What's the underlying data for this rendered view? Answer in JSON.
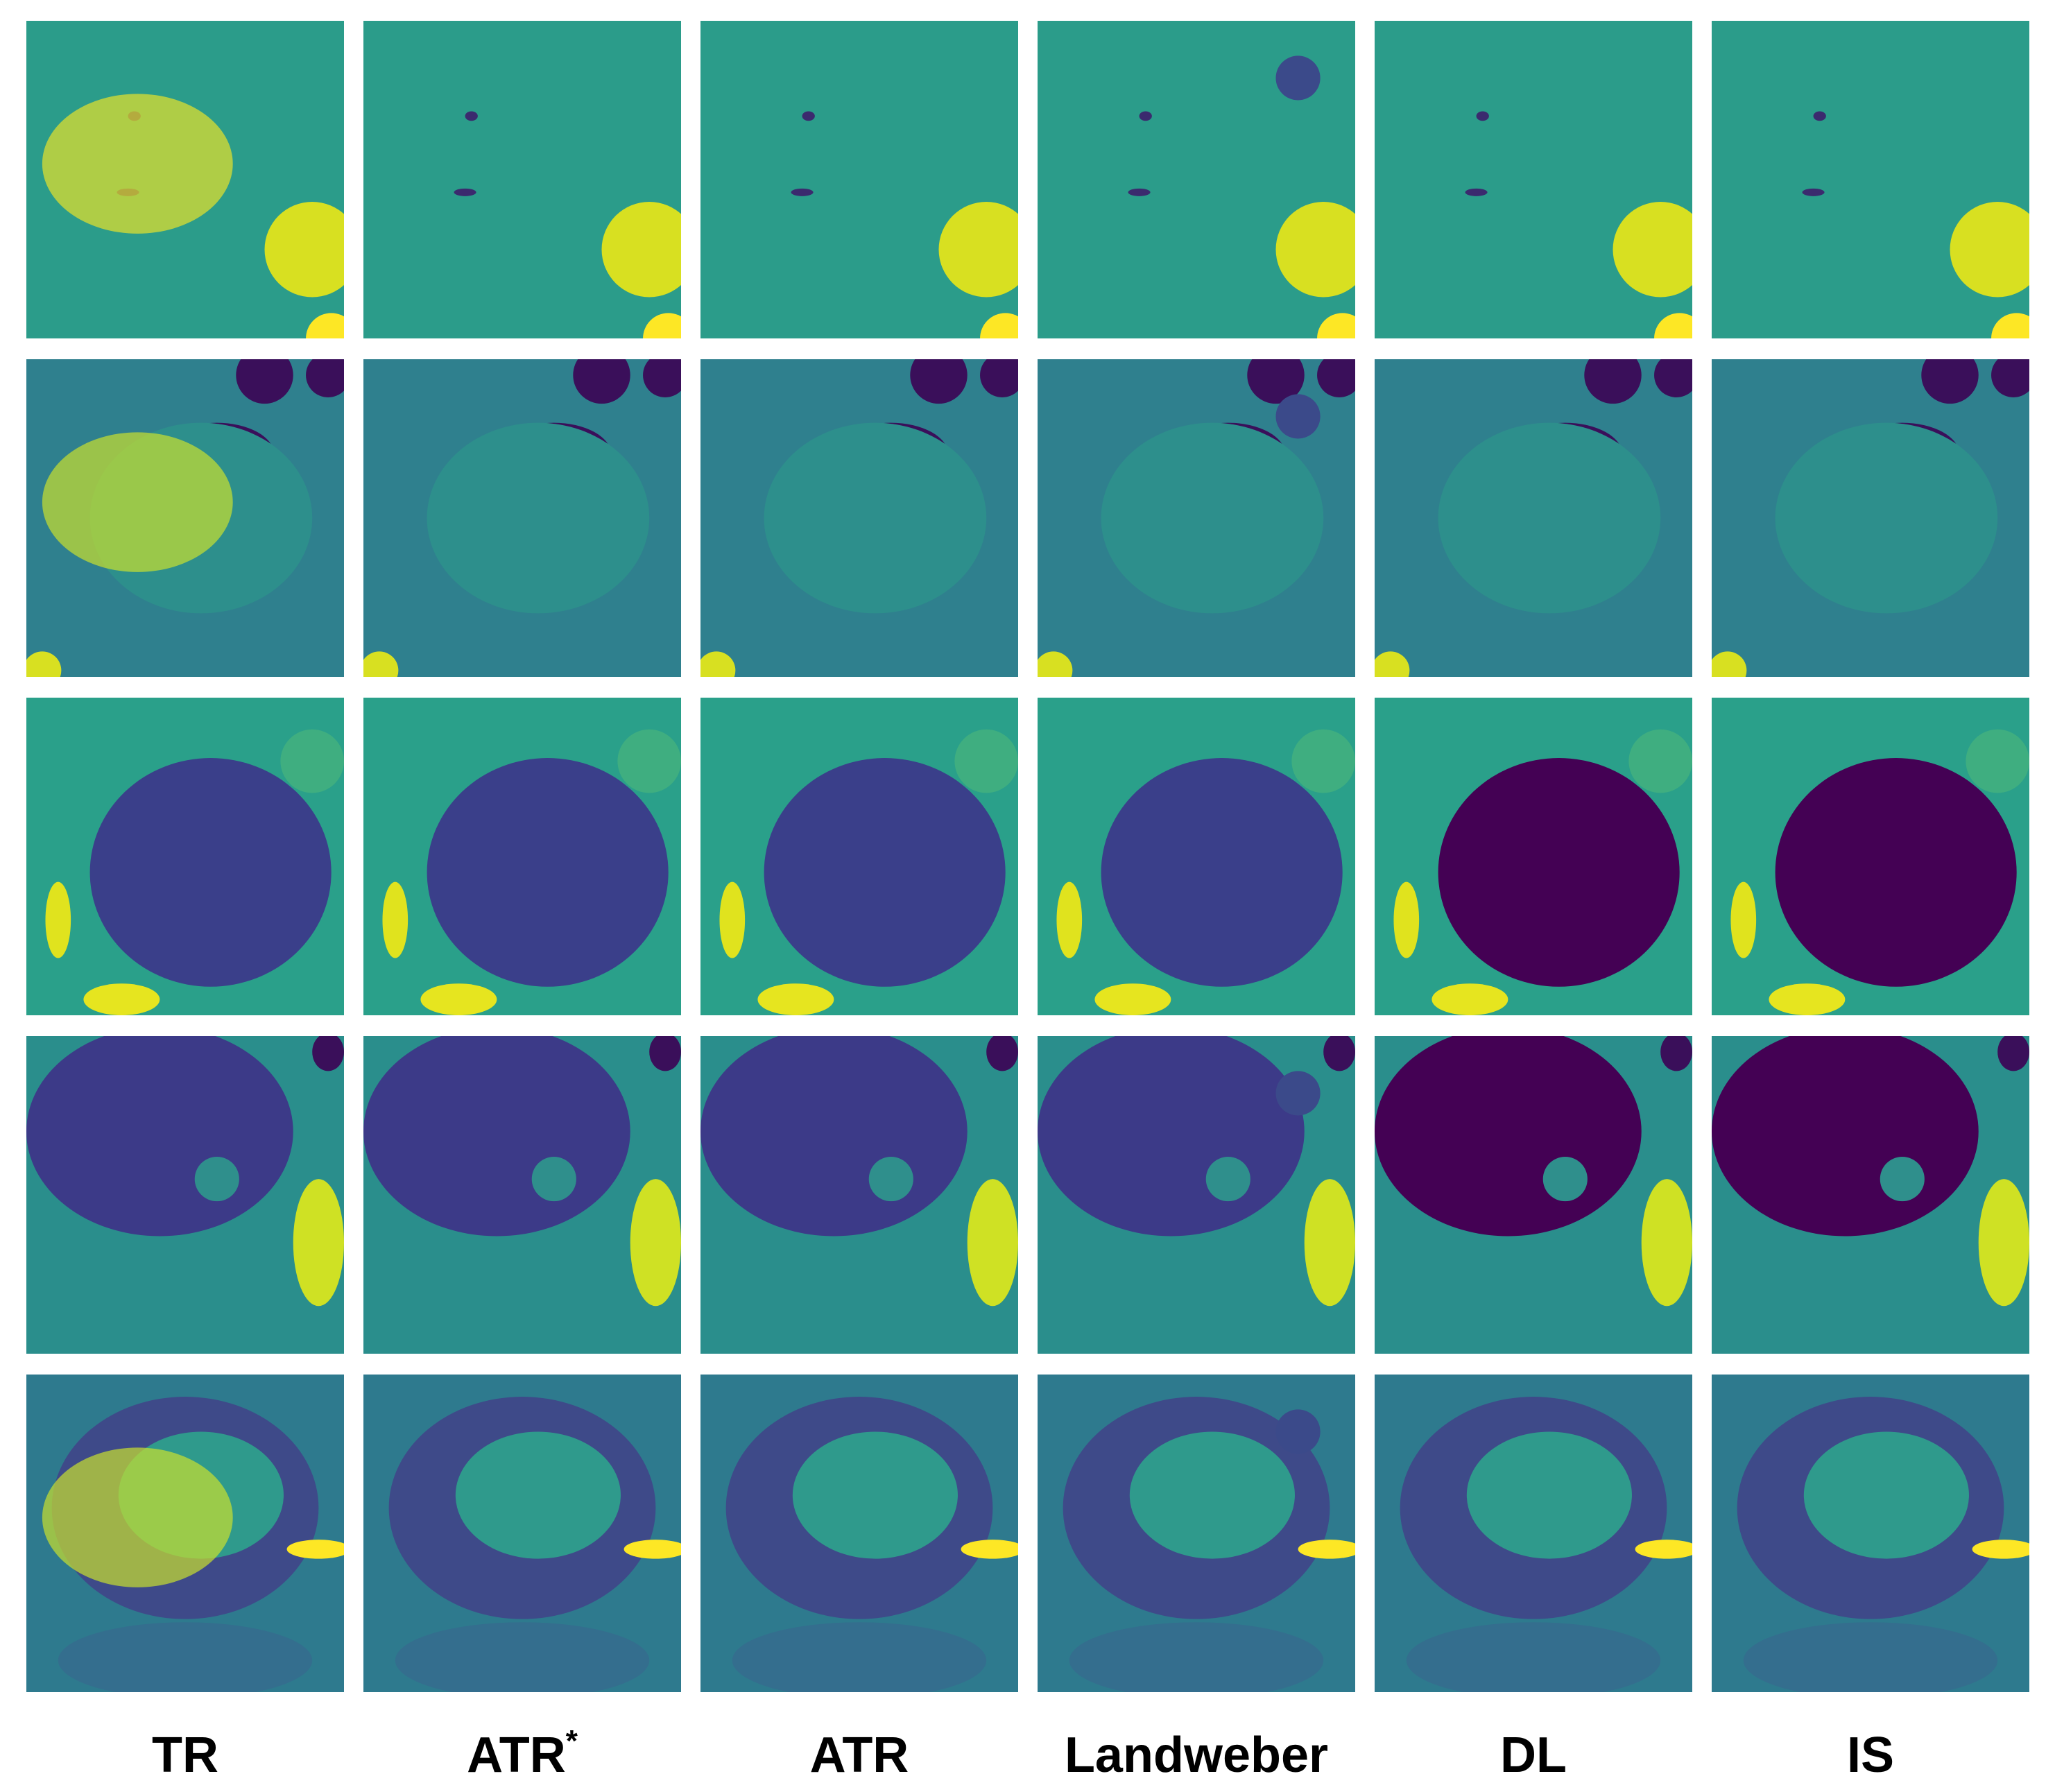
{
  "figure": {
    "columns": [
      {
        "label": "TR"
      },
      {
        "label": "ATR",
        "superscript": "*"
      },
      {
        "label": "ATR"
      },
      {
        "label": "Landweber"
      },
      {
        "label": "DL"
      },
      {
        "label": "IS"
      }
    ]
  }
}
